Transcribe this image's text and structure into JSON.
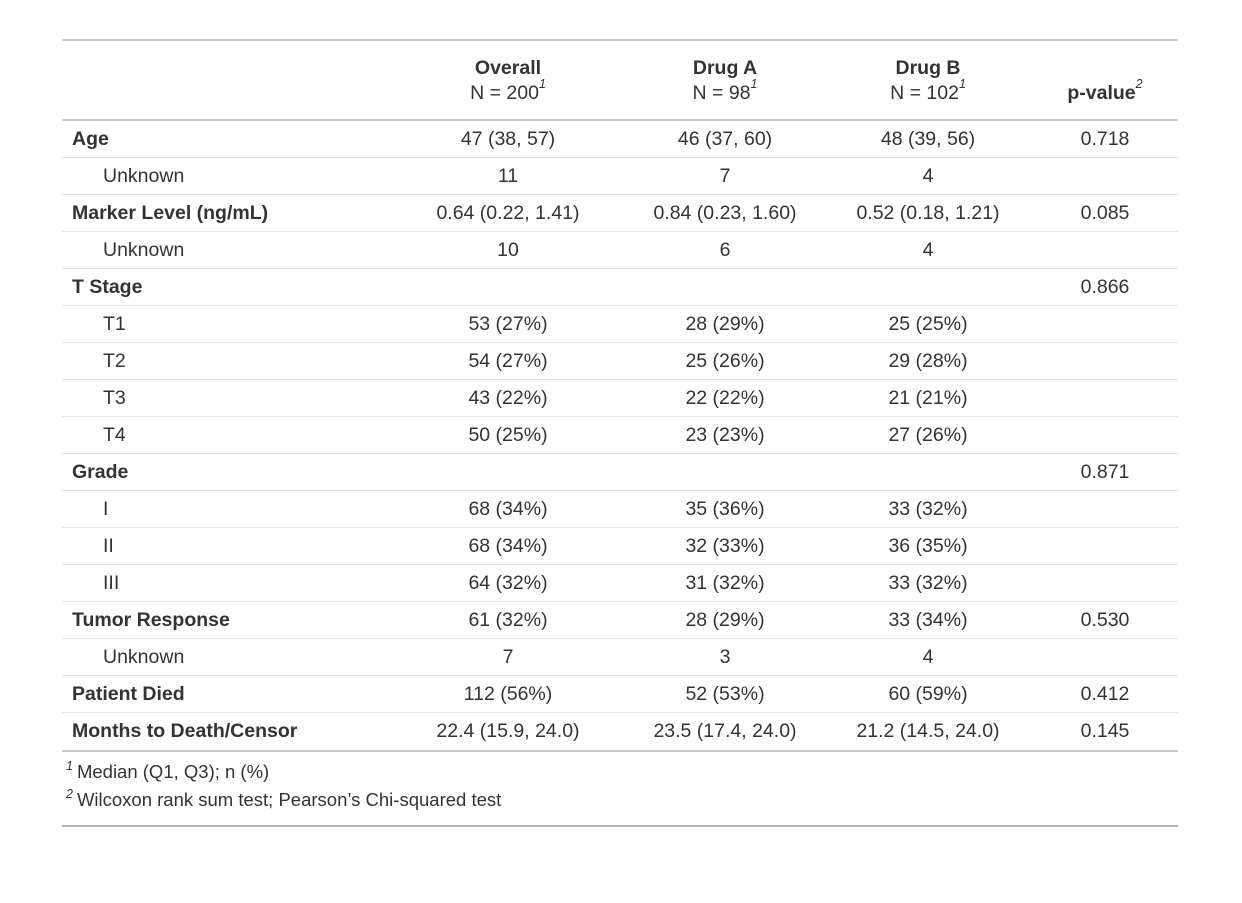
{
  "chart_data": {
    "type": "table",
    "header": {
      "label_column": "",
      "groups": [
        {
          "title": "Overall",
          "subtitle": "N = 200",
          "footnote_ref": "1"
        },
        {
          "title": "Drug A",
          "subtitle": "N = 98",
          "footnote_ref": "1"
        },
        {
          "title": "Drug B",
          "subtitle": "N = 102",
          "footnote_ref": "1"
        },
        {
          "title": "p-value",
          "subtitle": "",
          "footnote_ref": "2"
        }
      ]
    },
    "rows": [
      {
        "label": "Age",
        "bold": true,
        "indent": false,
        "overall": "47 (38, 57)",
        "drug_a": "46 (37, 60)",
        "drug_b": "48 (39, 56)",
        "p": "0.718"
      },
      {
        "label": "Unknown",
        "bold": false,
        "indent": true,
        "overall": "11",
        "drug_a": "7",
        "drug_b": "4",
        "p": ""
      },
      {
        "label": "Marker Level (ng/mL)",
        "bold": true,
        "indent": false,
        "overall": "0.64 (0.22, 1.41)",
        "drug_a": "0.84 (0.23, 1.60)",
        "drug_b": "0.52 (0.18, 1.21)",
        "p": "0.085"
      },
      {
        "label": "Unknown",
        "bold": false,
        "indent": true,
        "overall": "10",
        "drug_a": "6",
        "drug_b": "4",
        "p": ""
      },
      {
        "label": "T Stage",
        "bold": true,
        "indent": false,
        "overall": "",
        "drug_a": "",
        "drug_b": "",
        "p": "0.866"
      },
      {
        "label": "T1",
        "bold": false,
        "indent": true,
        "overall": "53 (27%)",
        "drug_a": "28 (29%)",
        "drug_b": "25 (25%)",
        "p": ""
      },
      {
        "label": "T2",
        "bold": false,
        "indent": true,
        "overall": "54 (27%)",
        "drug_a": "25 (26%)",
        "drug_b": "29 (28%)",
        "p": ""
      },
      {
        "label": "T3",
        "bold": false,
        "indent": true,
        "overall": "43 (22%)",
        "drug_a": "22 (22%)",
        "drug_b": "21 (21%)",
        "p": ""
      },
      {
        "label": "T4",
        "bold": false,
        "indent": true,
        "overall": "50 (25%)",
        "drug_a": "23 (23%)",
        "drug_b": "27 (26%)",
        "p": ""
      },
      {
        "label": "Grade",
        "bold": true,
        "indent": false,
        "overall": "",
        "drug_a": "",
        "drug_b": "",
        "p": "0.871"
      },
      {
        "label": "I",
        "bold": false,
        "indent": true,
        "overall": "68 (34%)",
        "drug_a": "35 (36%)",
        "drug_b": "33 (32%)",
        "p": ""
      },
      {
        "label": "II",
        "bold": false,
        "indent": true,
        "overall": "68 (34%)",
        "drug_a": "32 (33%)",
        "drug_b": "36 (35%)",
        "p": ""
      },
      {
        "label": "III",
        "bold": false,
        "indent": true,
        "overall": "64 (32%)",
        "drug_a": "31 (32%)",
        "drug_b": "33 (32%)",
        "p": ""
      },
      {
        "label": "Tumor Response",
        "bold": true,
        "indent": false,
        "overall": "61 (32%)",
        "drug_a": "28 (29%)",
        "drug_b": "33 (34%)",
        "p": "0.530"
      },
      {
        "label": "Unknown",
        "bold": false,
        "indent": true,
        "overall": "7",
        "drug_a": "3",
        "drug_b": "4",
        "p": ""
      },
      {
        "label": "Patient Died",
        "bold": true,
        "indent": false,
        "overall": "112 (56%)",
        "drug_a": "52 (53%)",
        "drug_b": "60 (59%)",
        "p": "0.412"
      },
      {
        "label": "Months to Death/Censor",
        "bold": true,
        "indent": false,
        "overall": "22.4 (15.9, 24.0)",
        "drug_a": "23.5 (17.4, 24.0)",
        "drug_b": "21.2 (14.5, 24.0)",
        "p": "0.145"
      }
    ],
    "footnotes": [
      {
        "ref": "1",
        "text": "Median (Q1, Q3); n (%)"
      },
      {
        "ref": "2",
        "text": "Wilcoxon rank sum test; Pearson’s Chi-squared test"
      }
    ]
  }
}
